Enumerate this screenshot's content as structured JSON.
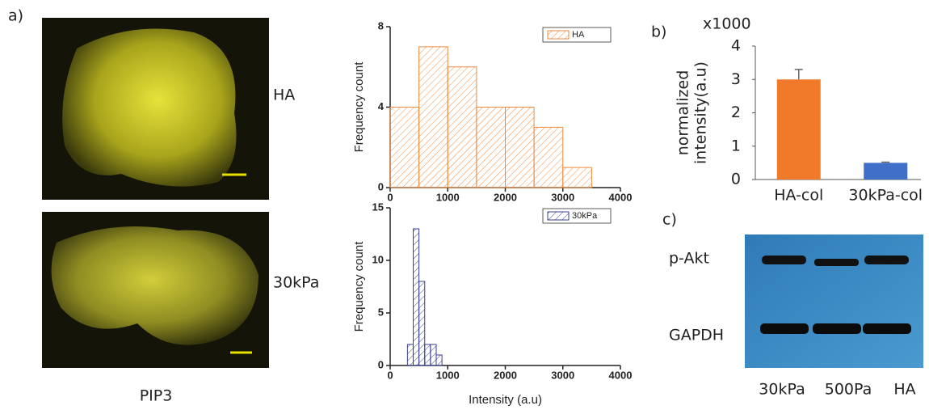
{
  "panel_labels": [
    "a)",
    "b)",
    "c)"
  ],
  "images": {
    "labels": [
      "HA",
      "30kPa"
    ],
    "caption": "PIP3"
  },
  "chart_data": [
    {
      "type": "histogram",
      "ylabel": "Frequency count",
      "bins": [
        0,
        500,
        1000,
        1500,
        2000,
        2500,
        3000,
        3500
      ],
      "series": [
        {
          "name": "HA",
          "color": "#f08a3c",
          "values": [
            4,
            7,
            6,
            4,
            4,
            3,
            1
          ]
        }
      ],
      "xlim": [
        0,
        4000
      ],
      "xticks": [
        0,
        1000,
        2000,
        3000,
        4000
      ],
      "ylim": [
        0,
        8
      ],
      "yticks": [
        0,
        4,
        8
      ]
    },
    {
      "type": "histogram",
      "ylabel": "Frequency count",
      "xlabel": "Intensity (a.u)",
      "bins": [
        300,
        400,
        500,
        600,
        700,
        800,
        900
      ],
      "series": [
        {
          "name": "30kPa",
          "color": "#3a3f8f",
          "values": [
            2,
            13,
            8,
            2,
            2,
            1
          ]
        }
      ],
      "xlim": [
        0,
        4000
      ],
      "xticks": [
        0,
        1000,
        2000,
        3000,
        4000
      ],
      "ylim": [
        0,
        15
      ],
      "yticks": [
        0,
        5,
        10,
        15
      ]
    },
    {
      "type": "bar",
      "annotation": "x1000",
      "ylabel_lines": [
        "normalized",
        "intensity(a.u)"
      ],
      "categories": [
        "HA-col",
        "30kPa-col"
      ],
      "values": [
        3.0,
        0.5
      ],
      "errors": [
        0.3,
        0.02
      ],
      "colors": [
        "#f07a2a",
        "#3f6fc6"
      ],
      "ylim": [
        0,
        4
      ],
      "yticks": [
        0,
        1,
        2,
        3,
        4
      ]
    }
  ],
  "blot": {
    "rows": [
      "p-Akt",
      "GAPDH"
    ],
    "lanes": [
      "30kPa",
      "500Pa",
      "HA"
    ]
  }
}
